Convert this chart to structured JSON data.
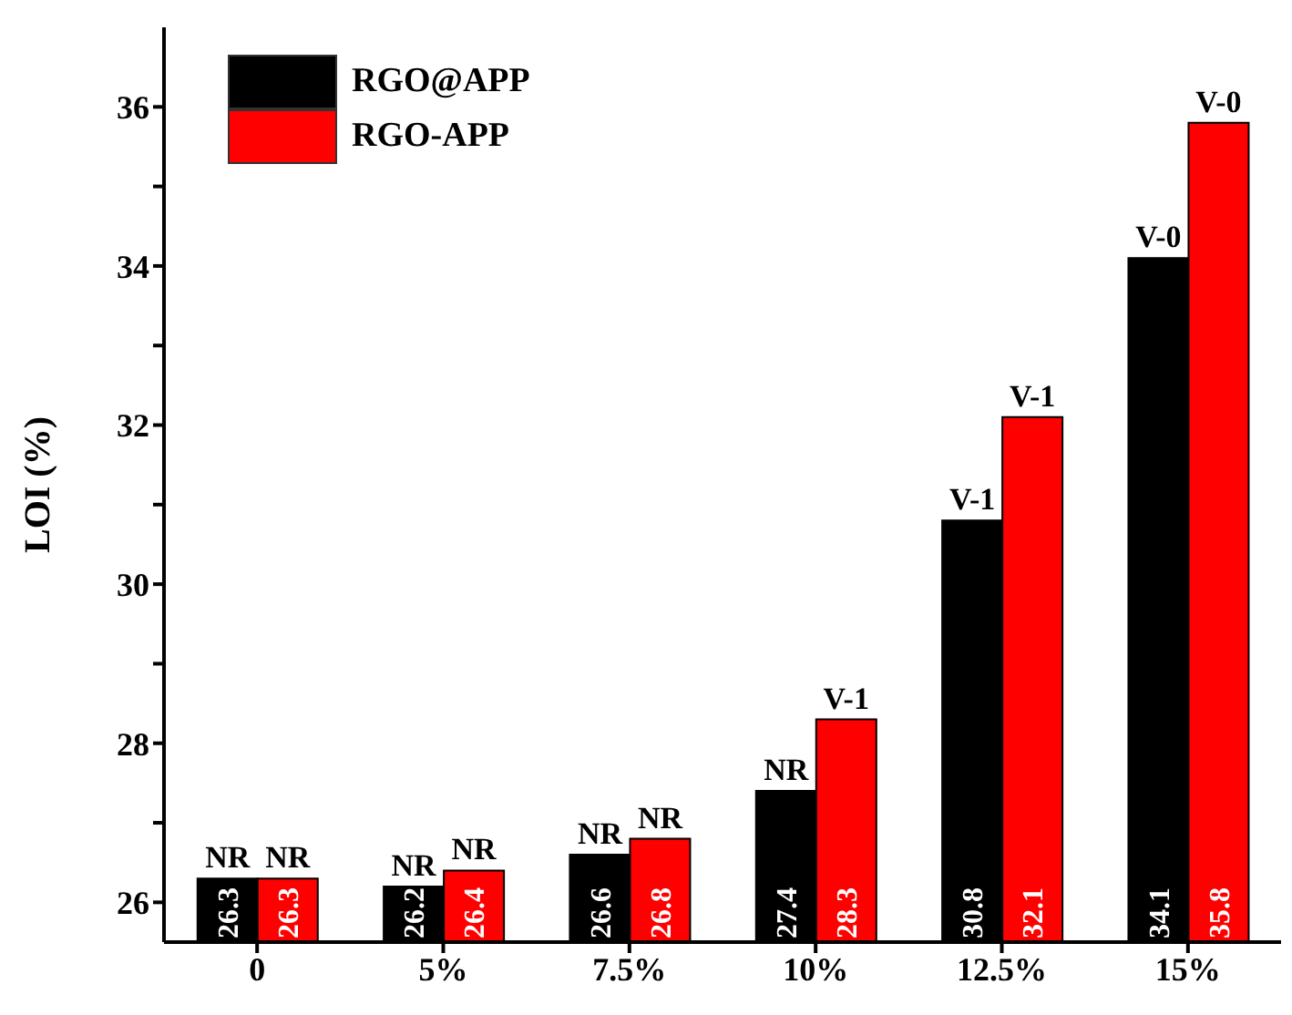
{
  "chart_data": {
    "type": "bar",
    "ylabel": "LOI (%)",
    "categories": [
      "0",
      "5%",
      "7.5%",
      "10%",
      "12.5%",
      "15%"
    ],
    "series": [
      {
        "name": "RGO@APP",
        "color": "#000000",
        "values": [
          26.3,
          26.2,
          26.6,
          27.4,
          30.8,
          34.1
        ]
      },
      {
        "name": "RGO-APP",
        "color": "#ff0000",
        "values": [
          26.3,
          26.4,
          26.8,
          28.3,
          32.1,
          35.8
        ]
      }
    ],
    "ylim": [
      25.5,
      37
    ],
    "yticks": [
      26,
      {
        "value": 27,
        "label": null
      },
      28,
      {
        "value": 29,
        "label": null
      },
      30,
      {
        "value": 31,
        "label": null
      },
      32,
      {
        "value": 33,
        "label": null
      },
      34,
      {
        "value": 35,
        "label": null
      },
      36
    ],
    "data_labels": true,
    "legend": "top left",
    "grid": false,
    "annotations": [
      {
        "text": "NR",
        "x": "0",
        "y": 26.3
      },
      {
        "text": "NR",
        "x": "0",
        "y": 26.3
      },
      {
        "text": "NR",
        "x": "5%",
        "y": 26.2
      },
      {
        "text": "NR",
        "x": "5%",
        "y": 26.4
      },
      {
        "text": "NR",
        "x": "7.5%",
        "y": 26.6
      },
      {
        "text": "NR",
        "x": "7.5%",
        "y": 26.8
      },
      {
        "text": "NR",
        "x": "10%",
        "y": 27.4
      },
      {
        "text": "V-1",
        "x": "10%",
        "y": 28.3
      },
      {
        "text": "V-1",
        "x": "12.5%",
        "y": 30.8
      },
      {
        "text": "V-1",
        "x": "12.5%",
        "y": 32.1
      },
      {
        "text": "V-0",
        "x": "15%",
        "y": 34.1
      },
      {
        "text": "V-0",
        "x": "15%",
        "y": 35.8
      }
    ]
  }
}
